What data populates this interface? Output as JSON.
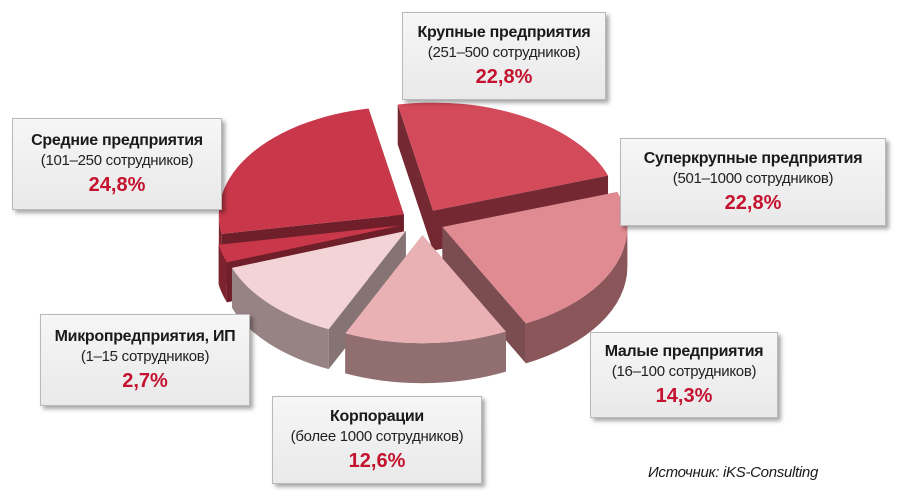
{
  "chart_data": {
    "type": "pie",
    "unit": "%",
    "slices": [
      {
        "name": "Крупные предприятия",
        "sub": "(251–500 сотрудников)",
        "value": 22.8,
        "value_label": "22,8%",
        "color": "#d34a5a"
      },
      {
        "name": "Суперкрупные предприятия",
        "sub": "(501–1000 сотрудников)",
        "value": 22.8,
        "value_label": "22,8%",
        "color": "#e08a91"
      },
      {
        "name": "Малые предприятия",
        "sub": "(16–100 сотрудников)",
        "value": 14.3,
        "value_label": "14,3%",
        "color": "#eab1b5"
      },
      {
        "name": "Корпорации",
        "sub": "(более 1000 сотрудников)",
        "value": 12.6,
        "value_label": "12,6%",
        "color": "#f3d3d5"
      },
      {
        "name": "Микропредприятия, ИП",
        "sub": "(1–15 сотрудников)",
        "value": 2.7,
        "value_label": "2,7%",
        "color": "#c9384a"
      },
      {
        "name": "Средние предприятия",
        "sub": "(101–250 сотрудников)",
        "value": 24.8,
        "value_label": "24,8%",
        "color": "#c9384a"
      }
    ]
  },
  "source": "Источник: iKS-Consulting",
  "colors": {
    "value_text": "#c4122f",
    "side_shade": "#6b6b6b"
  }
}
